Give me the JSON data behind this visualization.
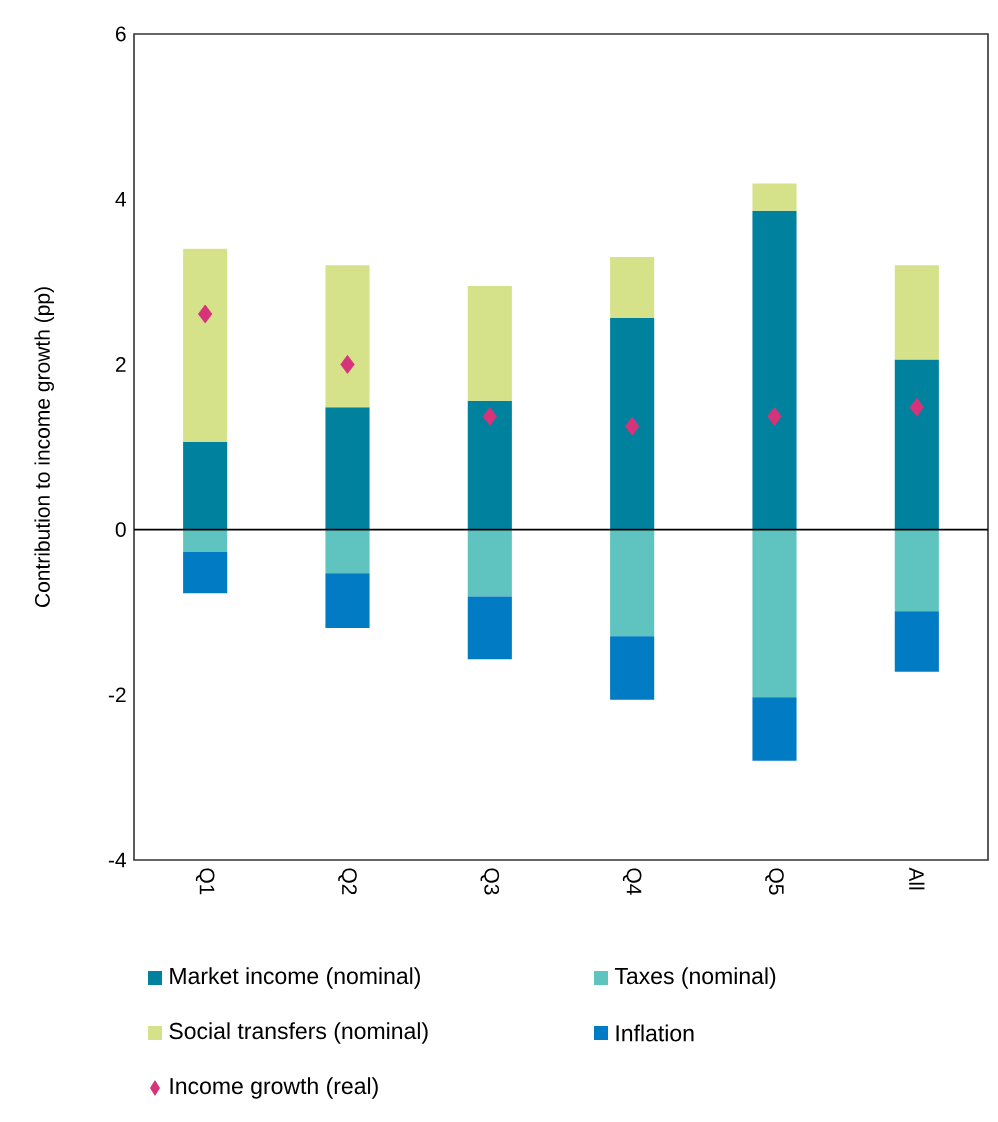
{
  "chart_data": {
    "type": "bar",
    "stacked": true,
    "ylabel": "Contribution to income growth (pp)",
    "categories": [
      "Q1",
      "Q2",
      "Q3",
      "Q4",
      "Q5",
      "All"
    ],
    "series": [
      {
        "name": "Market income (nominal)",
        "color": "#00829f",
        "values": [
          1.06,
          1.48,
          1.56,
          2.56,
          3.86,
          2.06
        ]
      },
      {
        "name": "Taxes (nominal)",
        "color": "#5fc4bf",
        "values": [
          -0.27,
          -0.53,
          -0.81,
          -1.29,
          -2.03,
          -0.99
        ]
      },
      {
        "name": "Social transfers (nominal)",
        "color": "#d5e28a",
        "values": [
          2.34,
          1.72,
          1.39,
          0.74,
          0.33,
          1.14
        ]
      },
      {
        "name": "Inflation",
        "color": "#007bc4",
        "values": [
          -0.5,
          -0.66,
          -0.76,
          -0.77,
          -0.77,
          -0.73
        ]
      },
      {
        "name": "Income growth (real)",
        "type": "scatter",
        "marker": "diamond",
        "color": "#d6337a",
        "values": [
          2.61,
          2.0,
          1.37,
          1.25,
          1.37,
          1.48
        ]
      }
    ],
    "ylim": [
      -4,
      6
    ],
    "yticks": [
      -4,
      -2,
      0,
      2,
      4,
      6
    ],
    "ref_lines": [
      {
        "axis": "y",
        "value": 0,
        "color": "#000000"
      }
    ],
    "legend": "bottom",
    "grid": false
  }
}
